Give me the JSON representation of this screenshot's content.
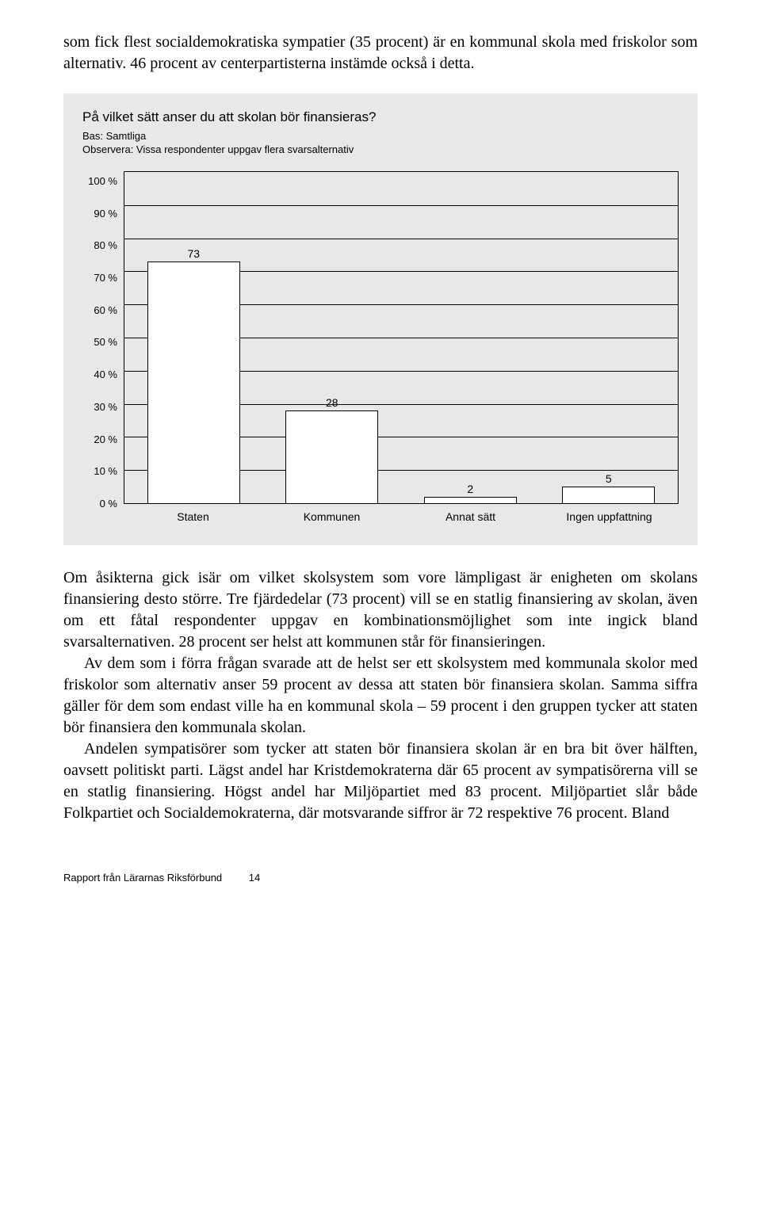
{
  "intro_paragraph": "som fick flest socialdemokratiska sympatier (35 procent) är en kommunal skola med friskolor som alternativ. 46 procent av centerpartisterna instämde också i detta.",
  "chart": {
    "type": "bar",
    "title": "På vilket sätt anser du att skolan bör finansieras?",
    "subtitle_line1": "Bas: Samtliga",
    "subtitle_line2": "Observera: Vissa respondenter uppgav flera svarsalternativ",
    "categories": [
      "Staten",
      "Kommunen",
      "Annat sätt",
      "Ingen uppfattning"
    ],
    "values": [
      73,
      28,
      2,
      5
    ],
    "ylim": [
      0,
      100
    ],
    "ytick_step": 10,
    "y_tick_labels": [
      "100 %",
      "90 %",
      "80 %",
      "70 %",
      "60 %",
      "50 %",
      "40 %",
      "30 %",
      "20 %",
      "10 %",
      "0 %"
    ],
    "bar_fill": "#ffffff",
    "bar_border": "#000000",
    "background_color": "#e8e8e8",
    "grid_color": "#000000",
    "bar_width": 0.88,
    "title_fontsize": 17,
    "label_fontsize": 14,
    "tick_fontsize": 13
  },
  "body_paragraphs": {
    "p1": "Om åsikterna gick isär om vilket skolsystem som vore lämpligast är enigheten om skolans finansiering desto större. Tre fjärdedelar (73 procent) vill se en statlig finansiering av skolan, även om ett fåtal respondenter uppgav en kombinationsmöjlighet som inte ingick bland svarsalternativen. 28 procent ser helst att kommunen står för finansieringen.",
    "p2": "Av dem som i förra frågan svarade att de helst ser ett skolsystem med kommunala skolor med friskolor som alternativ anser 59 procent av dessa att staten bör finansiera skolan. Samma siffra gäller för dem som endast ville ha en kommunal skola – 59 procent i den gruppen tycker att staten bör finansiera den kommunala skolan.",
    "p3": "Andelen sympatisörer som tycker att staten bör finansiera skolan är en bra bit över hälften, oavsett politiskt parti. Lägst andel har Kristdemokraterna där 65 procent av sympatisörerna vill se en statlig finansiering. Högst andel har Miljöpartiet med 83 procent. Miljöpartiet slår både Folkpartiet och Socialdemokraterna, där motsvarande siffror är 72 respektive 76 procent. Bland"
  },
  "footer": {
    "text": "Rapport från Lärarnas Riksförbund",
    "page_number": "14"
  }
}
